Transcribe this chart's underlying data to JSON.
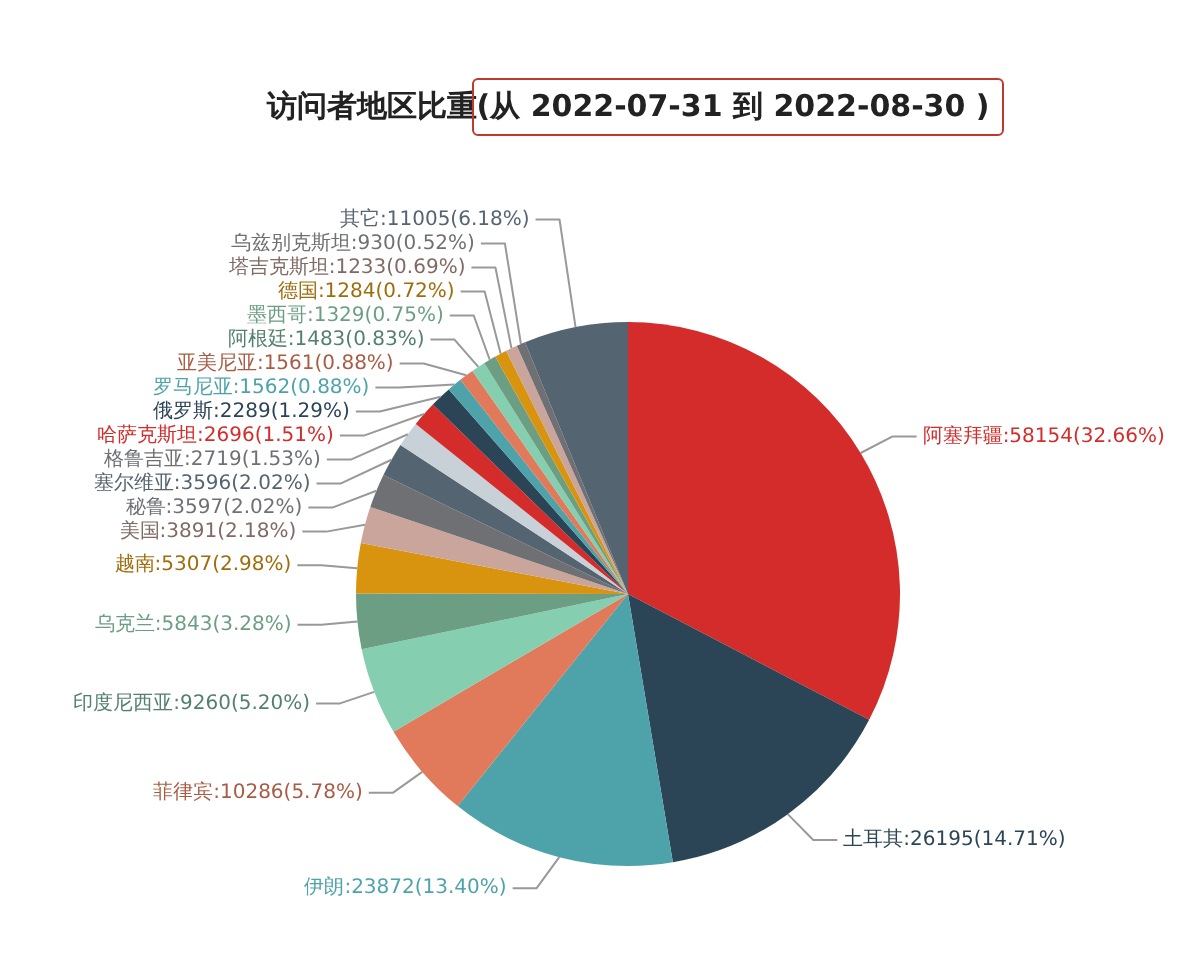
{
  "chart_data": {
    "type": "pie",
    "title": "访问者地区比重(从 2022-07-31 到 2022-08-30 )",
    "categories": [
      "阿塞拜疆",
      "土耳其",
      "伊朗",
      "菲律宾",
      "印度尼西亚",
      "乌克兰",
      "越南",
      "美国",
      "秘鲁",
      "塞尔维亚",
      "格鲁吉亚",
      "哈萨克斯坦",
      "俄罗斯",
      "罗马尼亚",
      "亚美尼亚",
      "阿根廷",
      "墨西哥",
      "德国",
      "塔吉克斯坦",
      "乌兹别克斯坦",
      "其它"
    ],
    "values": [
      58154,
      26195,
      23872,
      10286,
      9260,
      5843,
      5307,
      3891,
      3597,
      3596,
      2719,
      2696,
      2289,
      1562,
      1561,
      1483,
      1329,
      1284,
      1233,
      930,
      11005
    ],
    "colors": [
      "#d42b2b",
      "#2c4556",
      "#4ea3aa",
      "#e07a5a",
      "#86ceb0",
      "#6c9e84",
      "#d8930f",
      "#c9a59b",
      "#6e7074",
      "#556471",
      "#c8d0d8",
      "#d42b2b",
      "#2c4556",
      "#4ea3aa",
      "#e07a5a",
      "#86ceb0",
      "#6c9e84",
      "#d8930f",
      "#c9a59b",
      "#6e7074",
      "#556471"
    ],
    "value_labels": [
      "58154(32.66%)",
      "26195(14.71%)",
      "23872(13.40%)",
      "10286(5.78%)",
      "9260(5.20%)",
      "5843(3.28%)",
      "5307(2.98%)",
      "3891(2.18%)",
      "3597(2.02%)",
      "3596(2.02%)",
      "2719(1.53%)",
      "2696(1.51%)",
      "2289(1.29%)",
      "1562(0.88%)",
      "1561(0.88%)",
      "1483(0.83%)",
      "1329(0.75%)",
      "1284(0.72%)",
      "1233(0.69%)",
      "930(0.52%)",
      "11005(6.18%)"
    ]
  }
}
